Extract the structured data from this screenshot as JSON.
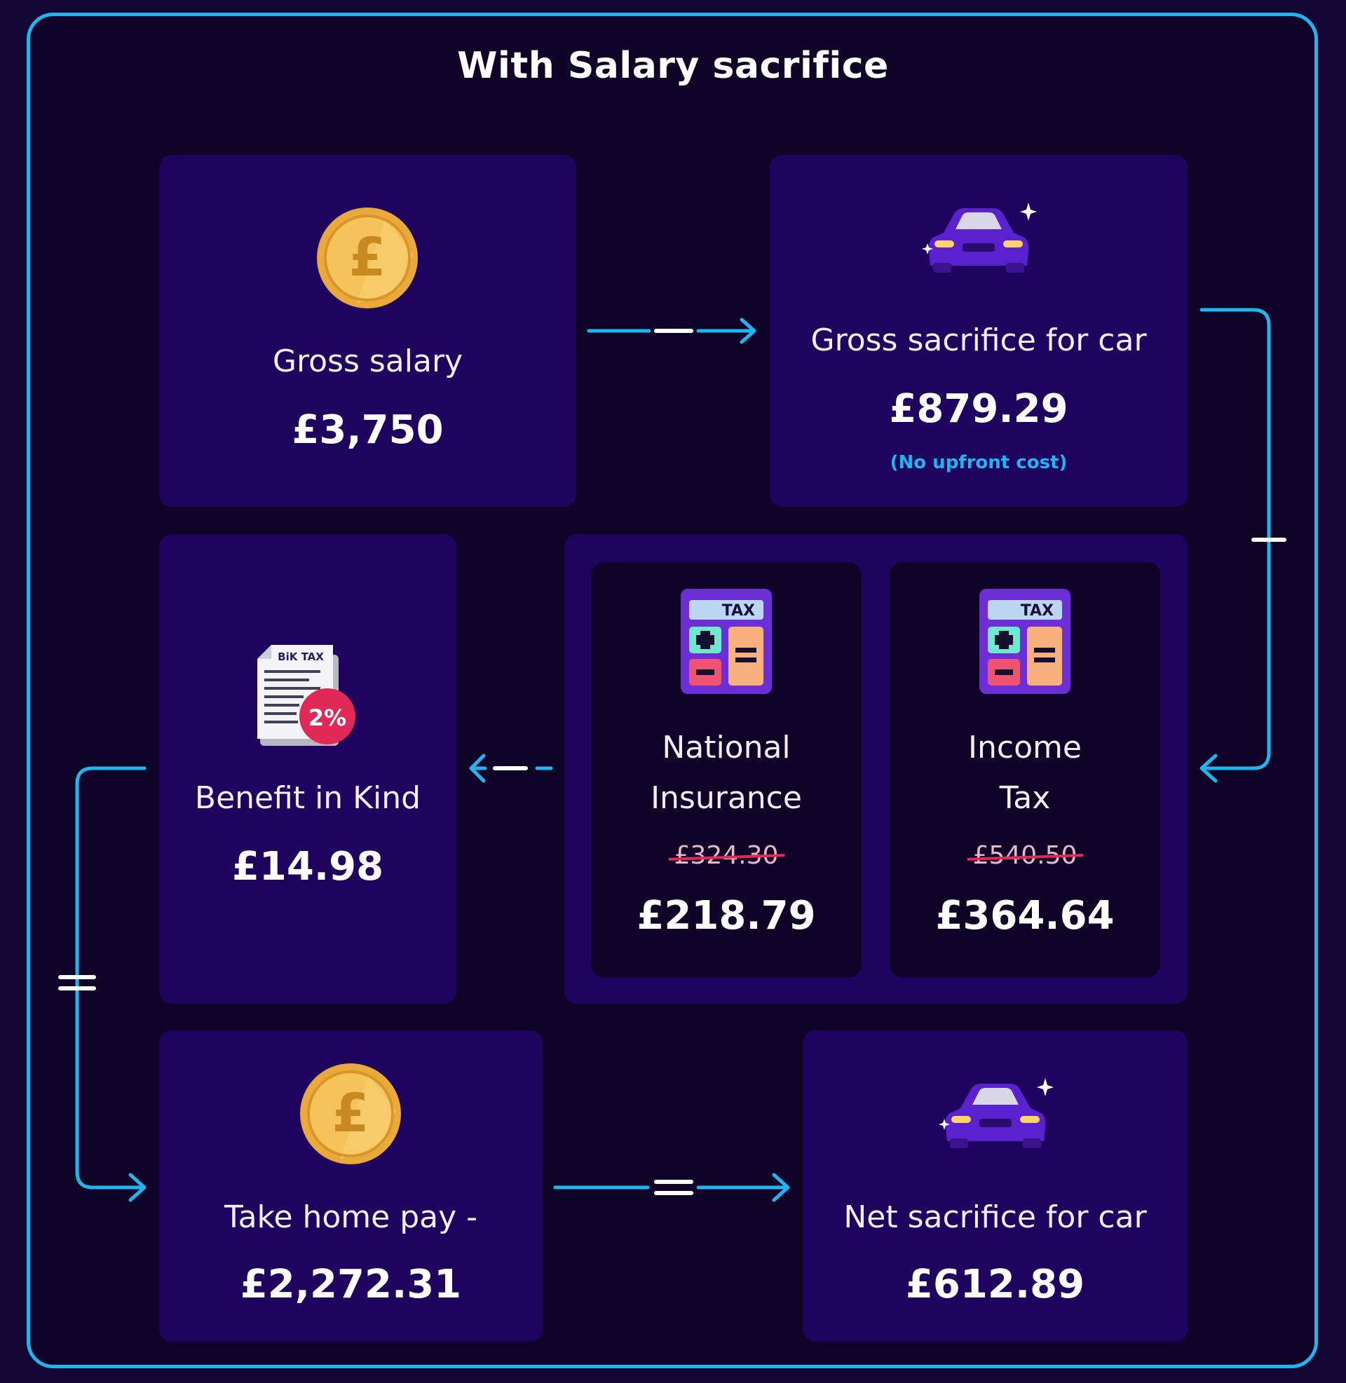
{
  "title": "With Salary sacrifice",
  "colors": {
    "accent": "#1fb6f0",
    "card": "#1e045e",
    "panel": "#0f0428",
    "strike": "#e02956"
  },
  "cards": {
    "gross_salary": {
      "icon": "pound-coin-icon",
      "label": "Gross salary",
      "value": "£3,750"
    },
    "gross_sacrifice": {
      "icon": "car-icon",
      "label": "Gross sacrifice for car",
      "value": "£879.29",
      "note": "(No upfront cost)"
    },
    "benefit_in_kind": {
      "icon": "bik-tax-document-icon",
      "icon_doc_text": "BiK TAX",
      "icon_badge": "2%",
      "label": "Benefit in Kind",
      "value": "£14.98"
    },
    "national_insurance": {
      "icon": "tax-calculator-icon",
      "icon_text": "TAX",
      "label_line1": "National",
      "label_line2": "Insurance",
      "old_value": "£324.30",
      "value": "£218.79"
    },
    "income_tax": {
      "icon": "tax-calculator-icon",
      "icon_text": "TAX",
      "label_line1": "Income",
      "label_line2": "Tax",
      "old_value": "£540.50",
      "value": "£364.64"
    },
    "take_home": {
      "icon": "pound-coin-icon",
      "label": "Take home pay -",
      "value": "£2,272.31"
    },
    "net_sacrifice": {
      "icon": "car-icon",
      "label": "Net sacrifice for car",
      "value": "£612.89"
    }
  },
  "operators": {
    "gross_to_sacrifice": "minus",
    "sacrifice_to_taxes": "minus",
    "taxes_to_bik": "minus",
    "bik_to_takehome": "equals",
    "takehome_to_net": "equals"
  }
}
